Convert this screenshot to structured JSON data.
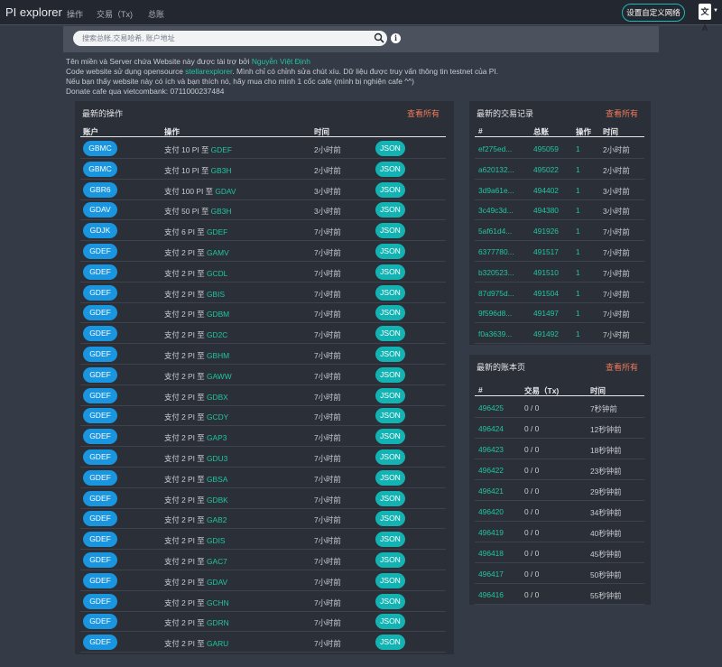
{
  "nav": {
    "brand": "PI explorer",
    "links": [
      "操作",
      "交易（Tx)",
      "总账"
    ],
    "network_button": "设置自定义网络",
    "language_icon": "translate-icon",
    "language_glyph": "文A"
  },
  "search": {
    "placeholder": "搜索总帐,交易哈希, 账户地址",
    "icons": [
      "search-icon",
      "info-icon"
    ]
  },
  "notice": {
    "line1_text": "Tên miền và Server chứa Website này được tài trợ bởi ",
    "line1_link": "Nguyễn Việt Định",
    "line2_text_a": "Code website sử dụng opensource ",
    "line2_link": "stellarexplorer",
    "line2_text_b": ". Mình chỉ có chỉnh sửa chút xíu. Dữ liệu được truy vấn thông tin testnet của PI.",
    "line3": "Nếu bạn thấy website này có ích và bạn thích nó, hãy mua cho mình 1 cốc cafe (mình bị nghiện cafe ^^)",
    "line4": "Donate cafe qua vietcombank: 0711000237484"
  },
  "operations": {
    "title": "最新的操作",
    "view_all": "查看所有",
    "headers": [
      "账户",
      "操作",
      "时间",
      ""
    ],
    "json_label": "JSON",
    "rows": [
      {
        "account": "GBMC",
        "text": "支付 10 PI 至 ",
        "dest": "GDEF",
        "time": "2小时前"
      },
      {
        "account": "GBMC",
        "text": "支付 10 PI 至 ",
        "dest": "GB3H",
        "time": "2小时前"
      },
      {
        "account": "GBR6",
        "text": "支付 100 PI 至 ",
        "dest": "GDAV",
        "time": "3小时前"
      },
      {
        "account": "GDAV",
        "text": "支付 50 PI 至 ",
        "dest": "GB3H",
        "time": "3小时前"
      },
      {
        "account": "GDJK",
        "text": "支付 6 PI 至 ",
        "dest": "GDEF",
        "time": "7小时前"
      },
      {
        "account": "GDEF",
        "text": "支付 2 PI 至 ",
        "dest": "GAMV",
        "time": "7小时前"
      },
      {
        "account": "GDEF",
        "text": "支付 2 PI 至 ",
        "dest": "GCDL",
        "time": "7小时前"
      },
      {
        "account": "GDEF",
        "text": "支付 2 PI 至 ",
        "dest": "GBIS",
        "time": "7小时前"
      },
      {
        "account": "GDEF",
        "text": "支付 2 PI 至 ",
        "dest": "GDBM",
        "time": "7小时前"
      },
      {
        "account": "GDEF",
        "text": "支付 2 PI 至 ",
        "dest": "GD2C",
        "time": "7小时前"
      },
      {
        "account": "GDEF",
        "text": "支付 2 PI 至 ",
        "dest": "GBHM",
        "time": "7小时前"
      },
      {
        "account": "GDEF",
        "text": "支付 2 PI 至 ",
        "dest": "GAWW",
        "time": "7小时前"
      },
      {
        "account": "GDEF",
        "text": "支付 2 PI 至 ",
        "dest": "GDBX",
        "time": "7小时前"
      },
      {
        "account": "GDEF",
        "text": "支付 2 PI 至 ",
        "dest": "GCDY",
        "time": "7小时前"
      },
      {
        "account": "GDEF",
        "text": "支付 2 PI 至 ",
        "dest": "GAP3",
        "time": "7小时前"
      },
      {
        "account": "GDEF",
        "text": "支付 2 PI 至 ",
        "dest": "GDU3",
        "time": "7小时前"
      },
      {
        "account": "GDEF",
        "text": "支付 2 PI 至 ",
        "dest": "GBSA",
        "time": "7小时前"
      },
      {
        "account": "GDEF",
        "text": "支付 2 PI 至 ",
        "dest": "GDBK",
        "time": "7小时前"
      },
      {
        "account": "GDEF",
        "text": "支付 2 PI 至 ",
        "dest": "GAB2",
        "time": "7小时前"
      },
      {
        "account": "GDEF",
        "text": "支付 2 PI 至 ",
        "dest": "GDIS",
        "time": "7小时前"
      },
      {
        "account": "GDEF",
        "text": "支付 2 PI 至 ",
        "dest": "GAC7",
        "time": "7小时前"
      },
      {
        "account": "GDEF",
        "text": "支付 2 PI 至 ",
        "dest": "GDAV",
        "time": "7小时前"
      },
      {
        "account": "GDEF",
        "text": "支付 2 PI 至 ",
        "dest": "GCHN",
        "time": "7小时前"
      },
      {
        "account": "GDEF",
        "text": "支付 2 PI 至 ",
        "dest": "GDRN",
        "time": "7小时前"
      },
      {
        "account": "GDEF",
        "text": "支付 2 PI 至 ",
        "dest": "GARU",
        "time": "7小时前"
      }
    ]
  },
  "transactions": {
    "title": "最新的交易记录",
    "view_all": "查看所有",
    "headers": [
      "#",
      "总账",
      "操作",
      "时间"
    ],
    "rows": [
      {
        "hash": "ef275ed...",
        "ledger": "495059",
        "ops": "1",
        "time": "2小时前"
      },
      {
        "hash": "a620132...",
        "ledger": "495022",
        "ops": "1",
        "time": "2小时前"
      },
      {
        "hash": "3d9a61e...",
        "ledger": "494402",
        "ops": "1",
        "time": "3小时前"
      },
      {
        "hash": "3c49c3d...",
        "ledger": "494380",
        "ops": "1",
        "time": "3小时前"
      },
      {
        "hash": "5af61d4...",
        "ledger": "491926",
        "ops": "1",
        "time": "7小时前"
      },
      {
        "hash": "6377780...",
        "ledger": "491517",
        "ops": "1",
        "time": "7小时前"
      },
      {
        "hash": "b320523...",
        "ledger": "491510",
        "ops": "1",
        "time": "7小时前"
      },
      {
        "hash": "87d975d...",
        "ledger": "491504",
        "ops": "1",
        "time": "7小时前"
      },
      {
        "hash": "9f596d8...",
        "ledger": "491497",
        "ops": "1",
        "time": "7小时前"
      },
      {
        "hash": "f0a3639...",
        "ledger": "491492",
        "ops": "1",
        "time": "7小时前"
      }
    ]
  },
  "ledgers": {
    "title": "最新的账本页",
    "view_all": "查看所有",
    "headers": [
      "#",
      "交易（Tx)",
      "时间"
    ],
    "rows": [
      {
        "ledger": "496425",
        "tx": "0 / 0",
        "time": "7秒钟前"
      },
      {
        "ledger": "496424",
        "tx": "0 / 0",
        "time": "12秒钟前"
      },
      {
        "ledger": "496423",
        "tx": "0 / 0",
        "time": "18秒钟前"
      },
      {
        "ledger": "496422",
        "tx": "0 / 0",
        "time": "23秒钟前"
      },
      {
        "ledger": "496421",
        "tx": "0 / 0",
        "time": "29秒钟前"
      },
      {
        "ledger": "496420",
        "tx": "0 / 0",
        "time": "34秒钟前"
      },
      {
        "ledger": "496419",
        "tx": "0 / 0",
        "time": "40秒钟前"
      },
      {
        "ledger": "496418",
        "tx": "0 / 0",
        "time": "45秒钟前"
      },
      {
        "ledger": "496417",
        "tx": "0 / 0",
        "time": "50秒钟前"
      },
      {
        "ledger": "496416",
        "tx": "0 / 0",
        "time": "55秒钟前"
      }
    ]
  },
  "colors": {
    "accent_link": "#22c5a0",
    "view_all": "#f07a5a",
    "account_pill": "#1a95e0",
    "json_pill": "#13b3b3",
    "background": "#343a46",
    "panel": "#2b2f38"
  }
}
